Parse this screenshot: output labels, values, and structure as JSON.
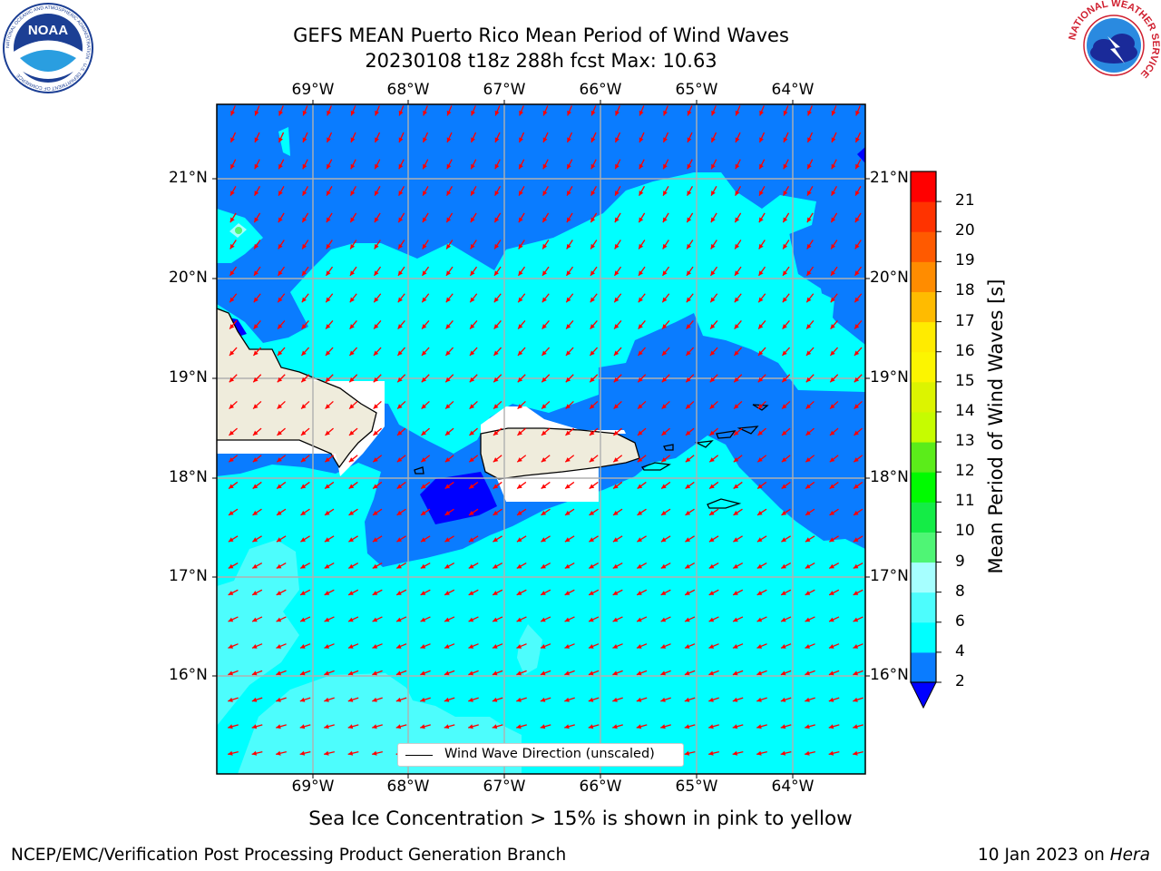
{
  "title": {
    "line1": "GEFS MEAN Puerto Rico Mean Period of Wind Waves",
    "line2": "20230108 t18z 288h fcst   Max: 10.63"
  },
  "map": {
    "lon_ticks": [
      "69°W",
      "68°W",
      "67°W",
      "66°W",
      "65°W",
      "64°W"
    ],
    "lat_ticks": [
      "21°N",
      "20°N",
      "19°N",
      "18°N",
      "17°N",
      "16°N"
    ],
    "legend_label": "Wind Wave Direction (unscaled)",
    "colors": {
      "land": "#efecdc",
      "band_2_4": "#0a7cff",
      "band_4_6": "#00ffff",
      "band_6_8": "#4dfdfd",
      "below_2": "#0000ff",
      "grid": "#b0b0b0",
      "arrows": "#ff0000"
    }
  },
  "colorbar": {
    "title": "Mean Period of Wind Waves [s]",
    "ticks": [
      "2",
      "4",
      "6",
      "8",
      "9",
      "10",
      "11",
      "12",
      "13",
      "14",
      "15",
      "16",
      "17",
      "18",
      "19",
      "20",
      "21"
    ],
    "bands": [
      {
        "from": 2,
        "to": 4,
        "color": "#0a7cff"
      },
      {
        "from": 4,
        "to": 6,
        "color": "#00ffff"
      },
      {
        "from": 6,
        "to": 8,
        "color": "#4dfdfd"
      },
      {
        "from": 8,
        "to": 9,
        "color": "#a6ffff"
      },
      {
        "from": 9,
        "to": 10,
        "color": "#4ff575"
      },
      {
        "from": 10,
        "to": 11,
        "color": "#14ec46"
      },
      {
        "from": 11,
        "to": 12,
        "color": "#00fb00"
      },
      {
        "from": 12,
        "to": 13,
        "color": "#5bec1a"
      },
      {
        "from": 13,
        "to": 14,
        "color": "#c6fc00"
      },
      {
        "from": 14,
        "to": 15,
        "color": "#dcf400"
      },
      {
        "from": 15,
        "to": 16,
        "color": "#fcf500"
      },
      {
        "from": 16,
        "to": 17,
        "color": "#ffeb00"
      },
      {
        "from": 17,
        "to": 18,
        "color": "#ffbb00"
      },
      {
        "from": 18,
        "to": 19,
        "color": "#ff8c00"
      },
      {
        "from": 19,
        "to": 20,
        "color": "#ff5a00"
      },
      {
        "from": 20,
        "to": 21,
        "color": "#ff3300"
      },
      {
        "from": 21,
        "to": 22,
        "color": "#ff0000"
      }
    ],
    "under_color": "#0000ff"
  },
  "subtitle": "Sea Ice Concentration > 15% is shown in pink to yellow",
  "footer": {
    "left": "NCEP/EMC/Verification Post Processing Product Generation Branch",
    "right_prefix": "10 Jan 2023 on ",
    "right_host": "Hera"
  },
  "logos": {
    "noaa_text": "NOAA",
    "noaa_ring": "NATIONAL OCEANIC AND ATMOSPHERIC ADMINISTRATION · U.S. DEPARTMENT OF COMMERCE",
    "nws_ring": "NATIONAL WEATHER SERVICE"
  }
}
